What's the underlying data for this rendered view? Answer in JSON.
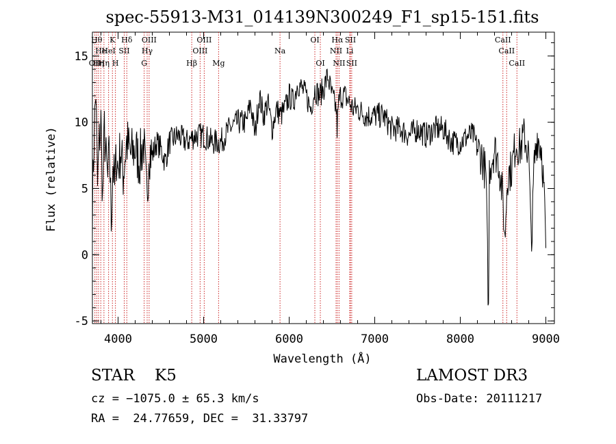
{
  "chart_data": {
    "type": "line",
    "title": "spec-55913-M31_014139N300249_F1_sp15-151.fits",
    "xlabel": "Wavelength (Å)",
    "ylabel": "Flux (relative)",
    "xlim": [
      3700,
      9100
    ],
    "ylim": [
      -5.2,
      16.8
    ],
    "xticks": [
      4000,
      5000,
      6000,
      7000,
      8000,
      9000
    ],
    "yticks": [
      -5,
      0,
      5,
      10,
      15
    ],
    "grid": false,
    "line_color": "#000000",
    "marker_color": "#cc2222",
    "series": [
      {
        "x": [
          3700,
          3720,
          3740,
          3760,
          3780,
          3800,
          3820,
          3840,
          3860,
          3880,
          3900,
          3920,
          3940,
          3960,
          3980,
          4000,
          4030,
          4060,
          4100,
          4150,
          4200,
          4250,
          4300,
          4320,
          4340,
          4360,
          4400,
          4450,
          4500,
          4550,
          4600,
          4700,
          4800,
          4900,
          5000,
          5100,
          5200,
          5300,
          5400,
          5500,
          5550,
          5600,
          5650,
          5700,
          5750,
          5800,
          5850,
          5900,
          5950,
          6000,
          6050,
          6100,
          6150,
          6200,
          6250,
          6300,
          6350,
          6400,
          6450,
          6500,
          6550,
          6560,
          6580,
          6600,
          6650,
          6700,
          6750,
          6800,
          6900,
          7000,
          7100,
          7200,
          7300,
          7400,
          7500,
          7600,
          7700,
          7800,
          7900,
          8000,
          8100,
          8150,
          8200,
          8250,
          8300,
          8330,
          8340,
          8360,
          8400,
          8450,
          8500,
          8520,
          8550,
          8600,
          8650,
          8700,
          8750,
          8800,
          8820,
          8840,
          8860,
          8900,
          8950,
          8980,
          9000
        ],
        "y": [
          3.5,
          9.0,
          12.5,
          5.0,
          8.5,
          10.0,
          4.0,
          9.5,
          7.0,
          5.5,
          8.0,
          2.5,
          7.0,
          5.0,
          7.5,
          6.5,
          8.0,
          6.0,
          8.5,
          7.5,
          8.0,
          7.0,
          8.5,
          6.0,
          3.5,
          8.0,
          7.5,
          8.5,
          8.0,
          7.0,
          8.5,
          9.0,
          8.5,
          9.0,
          9.0,
          8.5,
          8.5,
          9.5,
          10.0,
          10.0,
          11.5,
          9.0,
          12.0,
          10.5,
          11.5,
          9.5,
          11.0,
          10.5,
          11.0,
          12.0,
          11.5,
          13.0,
          12.5,
          12.0,
          11.0,
          12.5,
          12.0,
          12.5,
          13.5,
          12.0,
          11.0,
          9.5,
          11.5,
          12.0,
          12.0,
          11.5,
          11.0,
          11.0,
          10.5,
          10.5,
          10.5,
          9.5,
          9.5,
          9.0,
          9.5,
          9.0,
          9.5,
          9.5,
          8.5,
          8.5,
          9.0,
          9.0,
          8.0,
          7.5,
          6.0,
          -4.5,
          6.5,
          7.0,
          8.0,
          7.0,
          4.0,
          1.0,
          6.0,
          6.5,
          8.5,
          8.0,
          9.0,
          7.5,
          2.5,
          1.5,
          6.5,
          9.0,
          8.0,
          4.5,
          0.5
        ]
      }
    ],
    "annotations": [
      {
        "x": 3729,
        "label": "OII",
        "row": 3,
        "ha": "center"
      },
      {
        "x": 3750,
        "label": "Hθ",
        "row": 1,
        "ha": "center"
      },
      {
        "x": 3771,
        "label": "Hη",
        "row": 3,
        "ha": "center"
      },
      {
        "x": 3798,
        "label": "He",
        "row": 2,
        "ha": "center"
      },
      {
        "x": 3835,
        "label": "Hη",
        "row": 3,
        "ha": "center"
      },
      {
        "x": 3889,
        "label": "HeI",
        "row": 2,
        "ha": "center"
      },
      {
        "x": 3934,
        "label": "K",
        "row": 1,
        "ha": "center"
      },
      {
        "x": 3969,
        "label": "H",
        "row": 3,
        "ha": "center"
      },
      {
        "x": 4072,
        "label": "SII",
        "row": 2,
        "ha": "center"
      },
      {
        "x": 4102,
        "label": "Hδ",
        "row": 1,
        "ha": "center"
      },
      {
        "x": 4305,
        "label": "G",
        "row": 3,
        "ha": "center"
      },
      {
        "x": 4340,
        "label": "Hγ",
        "row": 2,
        "ha": "center"
      },
      {
        "x": 4363,
        "label": "OIII",
        "row": 1,
        "ha": "center"
      },
      {
        "x": 4861,
        "label": "Hβ",
        "row": 3,
        "ha": "center"
      },
      {
        "x": 4959,
        "label": "OIII",
        "row": 2,
        "ha": "center"
      },
      {
        "x": 5007,
        "label": "OIII",
        "row": 1,
        "ha": "center"
      },
      {
        "x": 5175,
        "label": "Mg",
        "row": 3,
        "ha": "center"
      },
      {
        "x": 5893,
        "label": "Na",
        "row": 2,
        "ha": "center"
      },
      {
        "x": 6300,
        "label": "OI",
        "row": 1,
        "ha": "center"
      },
      {
        "x": 6364,
        "label": "OI",
        "row": 3,
        "ha": "center"
      },
      {
        "x": 6548,
        "label": "NII",
        "row": 2,
        "ha": "center"
      },
      {
        "x": 6563,
        "label": "Hα",
        "row": 1,
        "ha": "center"
      },
      {
        "x": 6583,
        "label": "NII",
        "row": 3,
        "ha": "center"
      },
      {
        "x": 6708,
        "label": "Li",
        "row": 2,
        "ha": "center"
      },
      {
        "x": 6716,
        "label": "SII",
        "row": 1,
        "ha": "center"
      },
      {
        "x": 6731,
        "label": "SII",
        "row": 3,
        "ha": "center"
      },
      {
        "x": 8498,
        "label": "CaII",
        "row": 1,
        "ha": "center"
      },
      {
        "x": 8542,
        "label": "CaII",
        "row": 2,
        "ha": "center"
      },
      {
        "x": 8662,
        "label": "CaII",
        "row": 3,
        "ha": "center"
      }
    ]
  },
  "info": {
    "class_line": "STAR    K5",
    "cz_line": "cz = −1075.0 ± 65.3 km/s",
    "radec_line": "RA =  24.77659, DEC =  31.33797",
    "survey_line": "LAMOST DR3",
    "obs_line": "Obs-Date: 20111217"
  }
}
